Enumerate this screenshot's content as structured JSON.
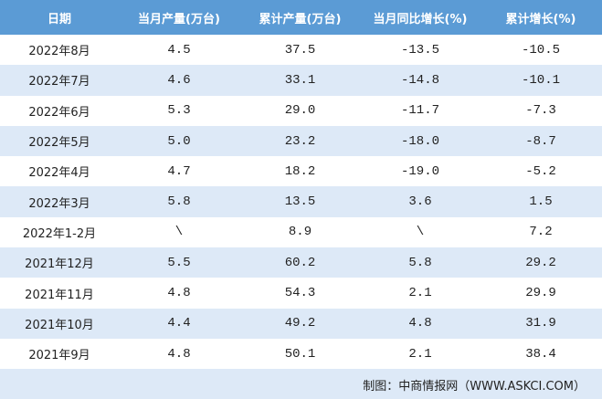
{
  "table": {
    "header": [
      "日期",
      "当月产量(万台)",
      "累计产量(万台)",
      "当月同比增长(%)",
      "累计增长(%)"
    ],
    "rows": [
      [
        "2022年8月",
        "4.5",
        "37.5",
        "-13.5",
        "-10.5"
      ],
      [
        "2022年7月",
        "4.6",
        "33.1",
        "-14.8",
        "-10.1"
      ],
      [
        "2022年6月",
        "5.3",
        "29.0",
        "-11.7",
        "-7.3"
      ],
      [
        "2022年5月",
        "5.0",
        "23.2",
        "-18.0",
        "-8.7"
      ],
      [
        "2022年4月",
        "4.7",
        "18.2",
        "-19.0",
        "-5.2"
      ],
      [
        "2022年3月",
        "5.8",
        "13.5",
        "3.6",
        "1.5"
      ],
      [
        "2022年1-2月",
        "\\",
        "8.9",
        "\\",
        "7.2"
      ],
      [
        "2021年12月",
        "5.5",
        "60.2",
        "5.8",
        "29.2"
      ],
      [
        "2021年11月",
        "4.8",
        "54.3",
        "2.1",
        "29.9"
      ],
      [
        "2021年10月",
        "4.4",
        "49.2",
        "4.8",
        "31.9"
      ],
      [
        "2021年9月",
        "4.8",
        "50.1",
        "2.1",
        "38.4"
      ]
    ],
    "footer": "制图：中商情报网（WWW.ASKCI.COM）"
  }
}
